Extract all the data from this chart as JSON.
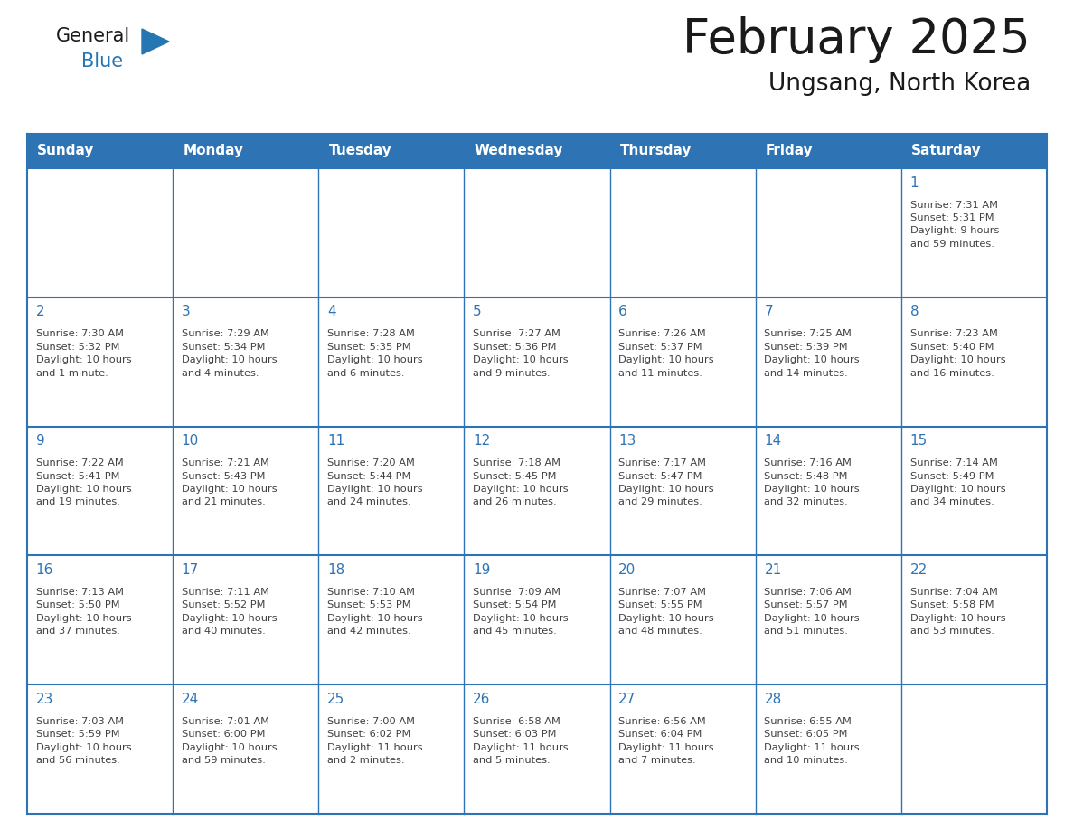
{
  "title": "February 2025",
  "subtitle": "Ungsang, North Korea",
  "days_of_week": [
    "Sunday",
    "Monday",
    "Tuesday",
    "Wednesday",
    "Thursday",
    "Friday",
    "Saturday"
  ],
  "header_bg": "#2E74B5",
  "header_text": "#FFFFFF",
  "cell_bg": "#FFFFFF",
  "border_color": "#2E74B5",
  "day_number_color": "#2E74B5",
  "cell_text_color": "#404040",
  "title_color": "#1A1A1A",
  "logo_color_general": "#1A1A1A",
  "logo_color_blue": "#2477B3",
  "calendar_data": [
    [
      {
        "day": null,
        "info": ""
      },
      {
        "day": null,
        "info": ""
      },
      {
        "day": null,
        "info": ""
      },
      {
        "day": null,
        "info": ""
      },
      {
        "day": null,
        "info": ""
      },
      {
        "day": null,
        "info": ""
      },
      {
        "day": 1,
        "info": "Sunrise: 7:31 AM\nSunset: 5:31 PM\nDaylight: 9 hours\nand 59 minutes."
      }
    ],
    [
      {
        "day": 2,
        "info": "Sunrise: 7:30 AM\nSunset: 5:32 PM\nDaylight: 10 hours\nand 1 minute."
      },
      {
        "day": 3,
        "info": "Sunrise: 7:29 AM\nSunset: 5:34 PM\nDaylight: 10 hours\nand 4 minutes."
      },
      {
        "day": 4,
        "info": "Sunrise: 7:28 AM\nSunset: 5:35 PM\nDaylight: 10 hours\nand 6 minutes."
      },
      {
        "day": 5,
        "info": "Sunrise: 7:27 AM\nSunset: 5:36 PM\nDaylight: 10 hours\nand 9 minutes."
      },
      {
        "day": 6,
        "info": "Sunrise: 7:26 AM\nSunset: 5:37 PM\nDaylight: 10 hours\nand 11 minutes."
      },
      {
        "day": 7,
        "info": "Sunrise: 7:25 AM\nSunset: 5:39 PM\nDaylight: 10 hours\nand 14 minutes."
      },
      {
        "day": 8,
        "info": "Sunrise: 7:23 AM\nSunset: 5:40 PM\nDaylight: 10 hours\nand 16 minutes."
      }
    ],
    [
      {
        "day": 9,
        "info": "Sunrise: 7:22 AM\nSunset: 5:41 PM\nDaylight: 10 hours\nand 19 minutes."
      },
      {
        "day": 10,
        "info": "Sunrise: 7:21 AM\nSunset: 5:43 PM\nDaylight: 10 hours\nand 21 minutes."
      },
      {
        "day": 11,
        "info": "Sunrise: 7:20 AM\nSunset: 5:44 PM\nDaylight: 10 hours\nand 24 minutes."
      },
      {
        "day": 12,
        "info": "Sunrise: 7:18 AM\nSunset: 5:45 PM\nDaylight: 10 hours\nand 26 minutes."
      },
      {
        "day": 13,
        "info": "Sunrise: 7:17 AM\nSunset: 5:47 PM\nDaylight: 10 hours\nand 29 minutes."
      },
      {
        "day": 14,
        "info": "Sunrise: 7:16 AM\nSunset: 5:48 PM\nDaylight: 10 hours\nand 32 minutes."
      },
      {
        "day": 15,
        "info": "Sunrise: 7:14 AM\nSunset: 5:49 PM\nDaylight: 10 hours\nand 34 minutes."
      }
    ],
    [
      {
        "day": 16,
        "info": "Sunrise: 7:13 AM\nSunset: 5:50 PM\nDaylight: 10 hours\nand 37 minutes."
      },
      {
        "day": 17,
        "info": "Sunrise: 7:11 AM\nSunset: 5:52 PM\nDaylight: 10 hours\nand 40 minutes."
      },
      {
        "day": 18,
        "info": "Sunrise: 7:10 AM\nSunset: 5:53 PM\nDaylight: 10 hours\nand 42 minutes."
      },
      {
        "day": 19,
        "info": "Sunrise: 7:09 AM\nSunset: 5:54 PM\nDaylight: 10 hours\nand 45 minutes."
      },
      {
        "day": 20,
        "info": "Sunrise: 7:07 AM\nSunset: 5:55 PM\nDaylight: 10 hours\nand 48 minutes."
      },
      {
        "day": 21,
        "info": "Sunrise: 7:06 AM\nSunset: 5:57 PM\nDaylight: 10 hours\nand 51 minutes."
      },
      {
        "day": 22,
        "info": "Sunrise: 7:04 AM\nSunset: 5:58 PM\nDaylight: 10 hours\nand 53 minutes."
      }
    ],
    [
      {
        "day": 23,
        "info": "Sunrise: 7:03 AM\nSunset: 5:59 PM\nDaylight: 10 hours\nand 56 minutes."
      },
      {
        "day": 24,
        "info": "Sunrise: 7:01 AM\nSunset: 6:00 PM\nDaylight: 10 hours\nand 59 minutes."
      },
      {
        "day": 25,
        "info": "Sunrise: 7:00 AM\nSunset: 6:02 PM\nDaylight: 11 hours\nand 2 minutes."
      },
      {
        "day": 26,
        "info": "Sunrise: 6:58 AM\nSunset: 6:03 PM\nDaylight: 11 hours\nand 5 minutes."
      },
      {
        "day": 27,
        "info": "Sunrise: 6:56 AM\nSunset: 6:04 PM\nDaylight: 11 hours\nand 7 minutes."
      },
      {
        "day": 28,
        "info": "Sunrise: 6:55 AM\nSunset: 6:05 PM\nDaylight: 11 hours\nand 10 minutes."
      },
      {
        "day": null,
        "info": ""
      }
    ]
  ]
}
